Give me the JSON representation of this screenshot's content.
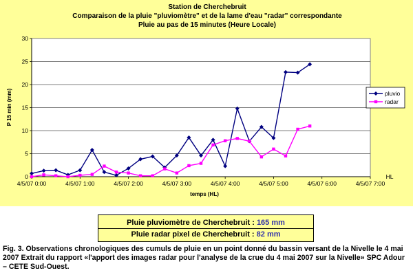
{
  "chart_data": {
    "type": "line",
    "title_lines": [
      "Station de Cherchebruit",
      "Comparaison de la pluie \"pluviomètre\" et de la lame d'eau \"radar\" correspondante",
      "Pluie au pas de 15 minutes (Heure Locale)"
    ],
    "xlabel": "temps (HL)",
    "xunit_label": "HL",
    "ylabel": "P 15 min (mm)",
    "x_range_hours": [
      0,
      7
    ],
    "x_tick_hours": [
      0,
      1,
      2,
      3,
      4,
      5,
      6,
      7
    ],
    "x_tick_labels": [
      "4/5/07 0:00",
      "4/5/07 1:00",
      "4/5/07 2:00",
      "4/5/07 3:00",
      "4/5/07 4:00",
      "4/5/07 5:00",
      "4/5/07 6:00",
      "4/5/07 7:00"
    ],
    "ylim": [
      0,
      30
    ],
    "y_ticks": [
      0,
      5,
      10,
      15,
      20,
      25,
      30
    ],
    "grid": "horizontal",
    "legend_position": "right",
    "x_hours": [
      0.0,
      0.25,
      0.5,
      0.75,
      1.0,
      1.25,
      1.5,
      1.75,
      2.0,
      2.25,
      2.5,
      2.75,
      3.0,
      3.25,
      3.5,
      3.75,
      4.0,
      4.25,
      4.5,
      4.75,
      5.0,
      5.25,
      5.5,
      5.75,
      6.0
    ],
    "series": [
      {
        "name": "pluvio",
        "color": "#000080",
        "marker": "diamond",
        "values": [
          0.7,
          1.3,
          1.4,
          0.4,
          1.4,
          5.8,
          1.0,
          0.3,
          1.8,
          3.8,
          4.4,
          2.0,
          4.6,
          8.5,
          4.6,
          8.0,
          2.3,
          14.8,
          7.7,
          10.8,
          8.4,
          22.7,
          22.6,
          24.4,
          null
        ]
      },
      {
        "name": "radar",
        "color": "#ff00ff",
        "marker": "square",
        "values": [
          0.0,
          0.4,
          0.2,
          0.0,
          0.3,
          0.5,
          2.3,
          1.0,
          0.8,
          0.2,
          0.2,
          1.7,
          0.8,
          2.4,
          2.9,
          6.9,
          7.8,
          8.3,
          7.7,
          4.3,
          6.0,
          4.5,
          10.3,
          11.0,
          null
        ]
      }
    ]
  },
  "totals": {
    "pluvio_label": "Pluie pluviomètre de Cherchebruit : ",
    "pluvio_value": "165 mm",
    "radar_label": "Pluie radar pixel de Cherchebruit : ",
    "radar_value": "82 mm"
  },
  "caption": "Fig. 3. Observations chronologiques des cumuls de pluie en un point donné du bassin versant de la Nivelle le 4 mai 2007 Extrait du rapport «l'apport des images radar pour l'analyse de la crue du 4 mai 2007 sur la Nivelle» SPC Adour – CETE Sud-Ouest."
}
